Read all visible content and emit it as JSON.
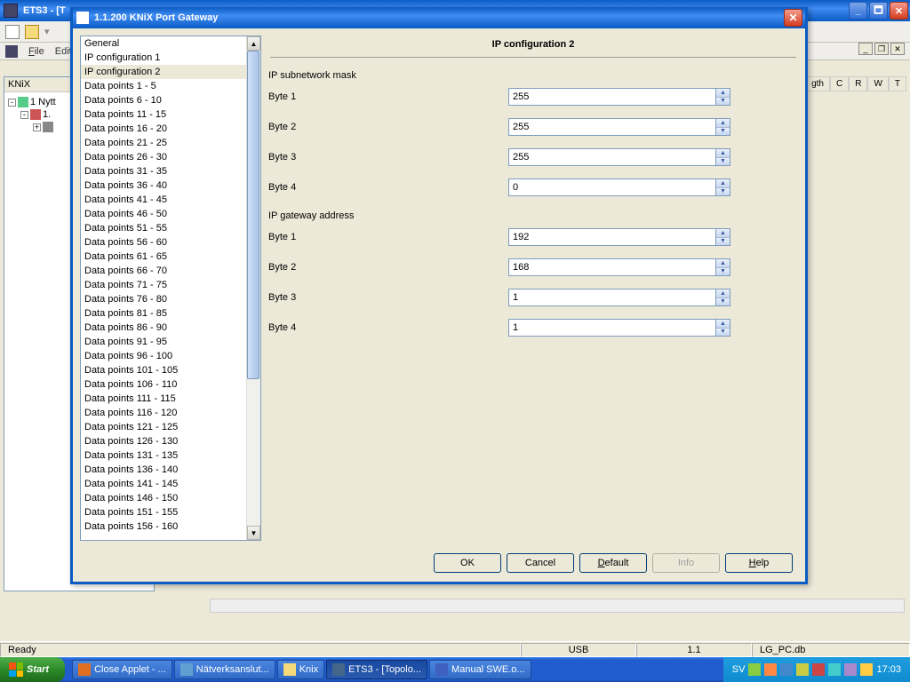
{
  "bg": {
    "title": "ETS3 - [T",
    "toolbar_icons": [
      "new",
      "open"
    ],
    "menubar": {
      "file": "File",
      "edit": "Edit"
    },
    "tree_header": "KNiX",
    "tree_node1": "1 Nytt",
    "tree_node2": "1.",
    "right_cols": [
      "gth",
      "C",
      "R",
      "W",
      "T"
    ]
  },
  "dialog": {
    "title": "1.1.200 KNiX Port Gateway",
    "main_title": "IP configuration 2",
    "sidebar": [
      "General",
      "IP configuration 1",
      "IP configuration 2",
      "Data points 1 - 5",
      "Data points 6 - 10",
      "Data points 11 - 15",
      "Data points 16 - 20",
      "Data points 21 - 25",
      "Data points 26 - 30",
      "Data points 31 - 35",
      "Data points 36 - 40",
      "Data points 41 - 45",
      "Data points 46 - 50",
      "Data points 51 - 55",
      "Data points 56 - 60",
      "Data points 61 - 65",
      "Data points 66 - 70",
      "Data points 71 - 75",
      "Data points 76 - 80",
      "Data points 81 - 85",
      "Data points 86 - 90",
      "Data points 91 - 95",
      "Data points 96 - 100",
      "Data points 101 - 105",
      "Data points 106 - 110",
      "Data points 111 - 115",
      "Data points 116 - 120",
      "Data points 121 - 125",
      "Data points 126 - 130",
      "Data points 131 - 135",
      "Data points 136 - 140",
      "Data points 141 - 145",
      "Data points 146 - 150",
      "Data points 151 - 155",
      "Data points 156 - 160"
    ],
    "selected_index": 2,
    "section1": "IP subnetwork mask",
    "section2": "IP gateway address",
    "labels": {
      "b1": "Byte 1",
      "b2": "Byte 2",
      "b3": "Byte 3",
      "b4": "Byte 4"
    },
    "subnet": {
      "b1": "255",
      "b2": "255",
      "b3": "255",
      "b4": "0"
    },
    "gateway": {
      "b1": "192",
      "b2": "168",
      "b3": "1",
      "b4": "1"
    },
    "buttons": {
      "ok": "OK",
      "cancel": "Cancel",
      "default": "Default",
      "info": "Info",
      "help": "Help"
    }
  },
  "status": {
    "ready": "Ready",
    "usb": "USB",
    "local": "1.1",
    "db": "LG_PC.db"
  },
  "taskbar": {
    "start": "Start",
    "items": [
      "Close Applet - ...",
      "Nätverksanslut...",
      "Knix",
      "ETS3 - [Topolo...",
      "Manual SWE.o..."
    ],
    "active_index": 3,
    "lang": "SV",
    "time": "17:03"
  },
  "colors": {
    "xp_blue": "#0a5bc4",
    "dialog_bg": "#ece9d8",
    "input_border": "#7f9db9"
  }
}
